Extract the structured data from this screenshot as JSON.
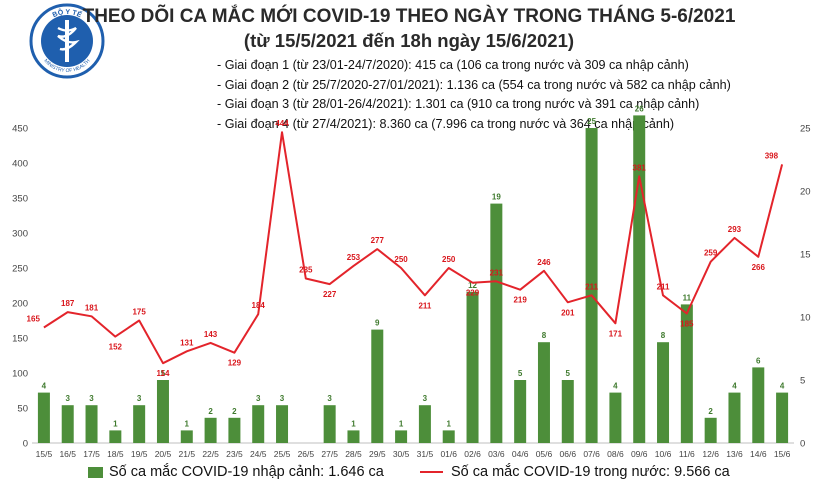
{
  "header": {
    "title_line1": "THEO DÕI CA MẮC MỚI COVID-19 THEO NGÀY TRONG THÁNG 5-6/2021",
    "title_line2": "(từ 15/5/2021 đến 18h ngày 15/6/2021)",
    "notes": [
      "- Giai đoạn 1 (từ 23/01-24/7/2020): 415 ca (106 ca trong nước và 309 ca nhập cảnh)",
      "- Giai đoạn 2 (từ 25/7/2020-27/01/2021): 1.136 ca (554 ca trong nước và 582 ca nhập cảnh)",
      "- Giai đoạn 3 (từ 28/01-26/4/2021): 1.301 ca (910 ca trong nước và 391 ca nhập cảnh)",
      "- Giai đoạn 4 (từ 27/4/2021): 8.360 ca (7.996 ca trong nước và 364 ca nhập cảnh)"
    ],
    "logo_text_top": "BỘ Y TẾ",
    "logo_text_bottom": "MINISTRY OF HEALTH"
  },
  "colors": {
    "bar": "#4d8e3a",
    "line": "#e3242b",
    "bar_label": "#3f7a2e",
    "line_label": "#d9161c",
    "logo": "#1f5fae"
  },
  "chart_data": {
    "type": "bar+line",
    "categories": [
      "15/5",
      "16/5",
      "17/5",
      "18/5",
      "19/5",
      "20/5",
      "21/5",
      "22/5",
      "23/5",
      "24/5",
      "25/5",
      "26/5",
      "27/5",
      "28/5",
      "29/5",
      "30/5",
      "31/5",
      "01/6",
      "02/6",
      "03/6",
      "04/6",
      "05/6",
      "06/6",
      "07/6",
      "08/6",
      "09/6",
      "10/6",
      "11/6",
      "12/6",
      "13/6",
      "14/6",
      "15/6"
    ],
    "series": [
      {
        "name": "Số ca mắc COVID-19 nhập cảnh: 1.646 ca",
        "type": "bar",
        "axis": "right",
        "values": [
          4,
          3,
          3,
          1,
          3,
          5,
          1,
          2,
          2,
          3,
          3,
          0,
          3,
          1,
          9,
          1,
          3,
          1,
          12,
          19,
          5,
          8,
          5,
          25,
          4,
          26,
          8,
          11,
          2,
          4,
          6,
          4
        ],
        "labels": [
          "4",
          "3",
          "3",
          "1",
          "3",
          "5",
          "1",
          "2",
          "2",
          "3",
          "3",
          "",
          "3",
          "1",
          "9",
          "1",
          "3",
          "1",
          "12",
          "19",
          "5",
          "8",
          "5",
          "25",
          "4",
          "26",
          "8",
          "11",
          "2",
          "4",
          "6",
          "4"
        ]
      },
      {
        "name": "Số ca mắc COVID-19 trong nước: 9.566 ca",
        "type": "line",
        "axis": "left",
        "values": [
          165,
          187,
          181,
          152,
          175,
          114,
          131,
          143,
          129,
          184,
          444,
          235,
          227,
          253,
          277,
          250,
          211,
          250,
          229,
          231,
          219,
          246,
          201,
          211,
          171,
          381,
          211,
          185,
          259,
          293,
          266,
          398
        ],
        "labels": [
          "165",
          "187",
          "181",
          "152",
          "175",
          "114",
          "131",
          "143",
          "129",
          "184",
          "444",
          "235",
          "227",
          "253",
          "277",
          "250",
          "211",
          "250",
          "229",
          "231",
          "219",
          "246",
          "201",
          "211",
          "171",
          "381",
          "211",
          "185",
          "259",
          "293",
          "266",
          "398"
        ]
      }
    ],
    "y_left": {
      "min": 0,
      "max": 450,
      "ticks": [
        "0",
        "50",
        "100",
        "150",
        "200",
        "250",
        "300",
        "350",
        "400",
        "450"
      ]
    },
    "y_right": {
      "min": 0,
      "max": 25,
      "ticks": [
        "0",
        "5",
        "10",
        "15",
        "20",
        "25"
      ]
    },
    "legend": {
      "position": "bottom"
    },
    "grid": false
  }
}
